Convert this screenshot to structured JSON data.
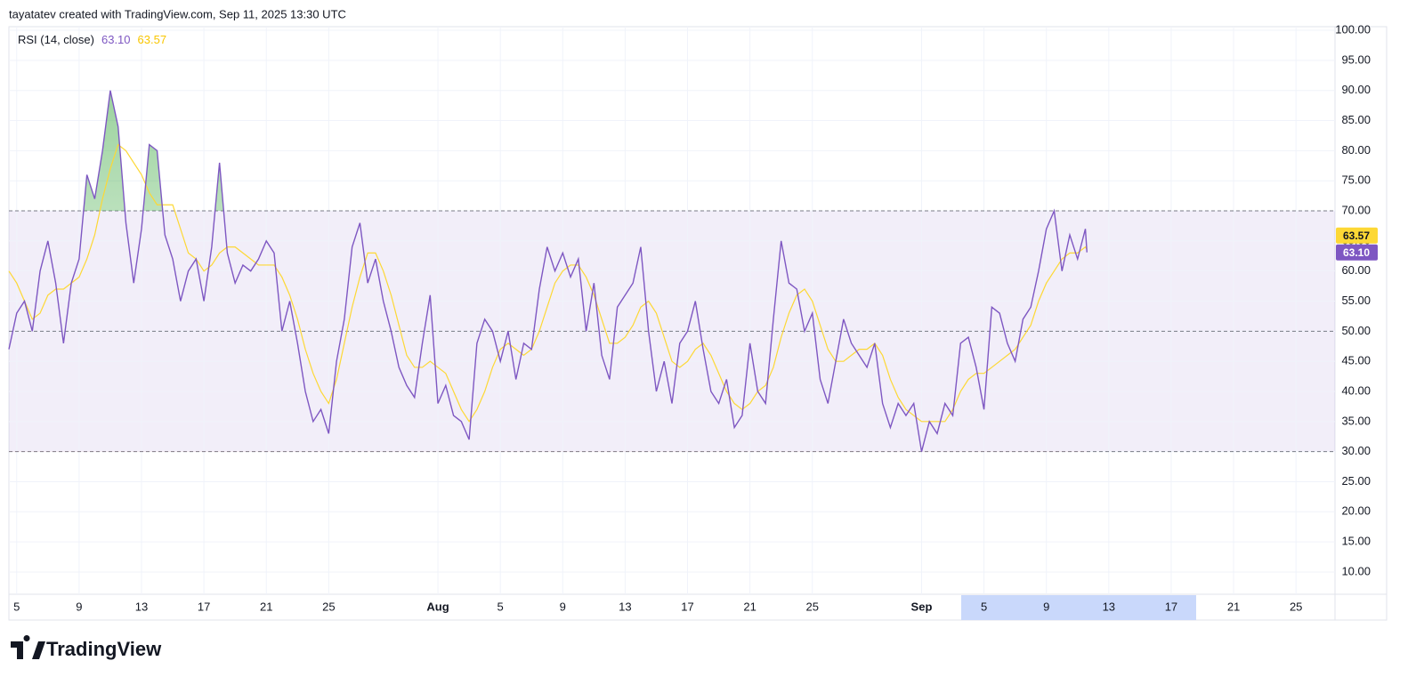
{
  "header": "tayatatev created with TradingView.com, Sep 11, 2025 13:30 UTC",
  "footer_brand": "TradingView",
  "chart_data": {
    "type": "line",
    "title": "RSI (14, close)",
    "x": [
      4.5,
      5,
      5.5,
      6,
      6.5,
      7,
      7.5,
      8,
      8.5,
      9,
      9.5,
      10,
      10.5,
      11,
      11.5,
      12,
      12.5,
      13,
      13.5,
      14,
      14.5,
      15,
      15.5,
      16,
      16.5,
      17,
      17.5,
      18,
      18.5,
      19,
      19.5,
      20,
      20.5,
      21,
      21.5,
      22,
      22.5,
      23,
      23.5,
      24,
      24.5,
      25,
      25.5,
      26,
      26.5,
      27,
      27.5,
      28,
      28.5,
      29,
      29.5,
      30,
      30.5,
      31,
      31.5,
      32,
      32.5,
      33,
      33.5,
      34,
      34.5,
      35,
      35.5,
      36,
      36.5,
      37,
      37.5,
      38,
      38.5,
      39,
      39.5,
      40,
      40.5,
      41,
      41.5,
      42,
      42.5,
      43,
      43.5,
      44,
      44.5,
      45,
      45.5,
      46,
      46.5,
      47,
      47.5,
      48,
      48.5,
      49,
      49.5,
      50,
      50.5,
      51,
      51.5,
      52,
      52.5,
      53,
      53.5,
      54,
      54.5,
      55,
      55.5,
      56,
      56.5,
      57,
      57.5,
      58,
      58.5,
      59,
      59.5,
      60,
      60.5,
      61,
      61.5,
      62,
      62.5,
      63,
      63.5,
      64,
      64.5,
      65,
      65.5,
      66,
      66.5,
      67,
      67.5,
      68,
      68.5,
      69,
      69.5,
      70,
      70.5,
      71,
      71.5,
      72,
      72.5,
      73,
      73.5,
      73.6
    ],
    "series": [
      {
        "color": "#7e57c2",
        "last_value_label": "63.10",
        "values": [
          47,
          53,
          55,
          50,
          60,
          65,
          58,
          48,
          58,
          62,
          76,
          72,
          80,
          90,
          84,
          68,
          58,
          67,
          81,
          80,
          66,
          62,
          55,
          60,
          62,
          55,
          64,
          78,
          63,
          58,
          61,
          60,
          62,
          65,
          63,
          50,
          55,
          48,
          40,
          35,
          37,
          33,
          45,
          52,
          64,
          68,
          58,
          62,
          55,
          50,
          44,
          41,
          39,
          48,
          56,
          38,
          41,
          36,
          35,
          32,
          48,
          52,
          50,
          45,
          50,
          42,
          48,
          47,
          57,
          64,
          60,
          63,
          59,
          62,
          50,
          58,
          46,
          42,
          54,
          56,
          58,
          64,
          50,
          40,
          45,
          38,
          48,
          50,
          55,
          47,
          40,
          38,
          42,
          34,
          36,
          48,
          40,
          38,
          52,
          65,
          58,
          57,
          50,
          53,
          42,
          38,
          45,
          52,
          48,
          46,
          44,
          48,
          38,
          34,
          38,
          36,
          38,
          30,
          35,
          33,
          38,
          36,
          48,
          49,
          44,
          37,
          54,
          53,
          48,
          45,
          52,
          54,
          60,
          67,
          70,
          60,
          66,
          62,
          67,
          63.1
        ]
      },
      {
        "color": "#fdd835",
        "last_value_label": "63.57",
        "values": [
          60,
          58,
          55,
          52,
          53,
          56,
          57,
          57,
          58,
          59,
          62,
          66,
          72,
          77,
          81,
          80,
          78,
          76,
          73,
          71,
          71,
          71,
          67,
          63,
          62,
          60,
          61,
          63,
          64,
          64,
          63,
          62,
          61,
          61,
          61,
          59,
          56,
          52,
          47,
          43,
          40,
          38,
          42,
          48,
          54,
          59,
          63,
          63,
          60,
          56,
          51,
          46,
          44,
          44,
          45,
          44,
          43,
          40,
          37,
          35,
          37,
          40,
          44,
          47,
          48,
          47,
          46,
          47,
          50,
          54,
          58,
          60,
          61,
          61,
          59,
          56,
          52,
          48,
          48,
          49,
          51,
          54,
          55,
          53,
          49,
          45,
          44,
          45,
          47,
          48,
          46,
          43,
          40,
          38,
          37,
          38,
          40,
          41,
          44,
          49,
          53,
          56,
          57,
          55,
          51,
          47,
          45,
          45,
          46,
          47,
          47,
          48,
          46,
          42,
          39,
          37,
          36,
          35,
          35,
          35,
          35,
          37,
          40,
          42,
          43,
          43,
          44,
          45,
          46,
          47,
          49,
          51,
          55,
          58,
          60,
          62,
          63,
          63,
          64,
          63.57
        ]
      }
    ],
    "xlim": [
      4.5,
      89.5
    ],
    "xticks": [
      {
        "value": 5,
        "label": "5"
      },
      {
        "value": 9,
        "label": "9"
      },
      {
        "value": 13,
        "label": "13"
      },
      {
        "value": 17,
        "label": "17"
      },
      {
        "value": 21,
        "label": "21"
      },
      {
        "value": 25,
        "label": "25"
      },
      {
        "value": 32,
        "label": "Aug"
      },
      {
        "value": 36,
        "label": "5"
      },
      {
        "value": 40,
        "label": "9"
      },
      {
        "value": 44,
        "label": "13"
      },
      {
        "value": 48,
        "label": "17"
      },
      {
        "value": 52,
        "label": "21"
      },
      {
        "value": 56,
        "label": "25"
      },
      {
        "value": 63,
        "label": "Sep"
      },
      {
        "value": 67,
        "label": "5"
      },
      {
        "value": 71,
        "label": "9"
      },
      {
        "value": 75,
        "label": "13"
      },
      {
        "value": 79,
        "label": "17"
      },
      {
        "value": 83,
        "label": "21"
      },
      {
        "value": 87,
        "label": "25"
      }
    ],
    "ylim": [
      6.3,
      100.6
    ],
    "yticks": [
      {
        "value": 10,
        "label": "10.00"
      },
      {
        "value": 15,
        "label": "15.00"
      },
      {
        "value": 20,
        "label": "20.00"
      },
      {
        "value": 25,
        "label": "25.00"
      },
      {
        "value": 30,
        "label": "30.00"
      },
      {
        "value": 35,
        "label": "35.00"
      },
      {
        "value": 40,
        "label": "40.00"
      },
      {
        "value": 45,
        "label": "45.00"
      },
      {
        "value": 50,
        "label": "50.00"
      },
      {
        "value": 55,
        "label": "55.00"
      },
      {
        "value": 60,
        "label": "60.00"
      },
      {
        "value": 65,
        "label": "65.00"
      },
      {
        "value": 70,
        "label": "70.00"
      },
      {
        "value": 75,
        "label": "75.00"
      },
      {
        "value": 80,
        "label": "80.00"
      },
      {
        "value": 85,
        "label": "85.00"
      },
      {
        "value": 90,
        "label": "90.00"
      },
      {
        "value": 95,
        "label": "95.00"
      },
      {
        "value": 100,
        "label": "100.00"
      }
    ],
    "grid": true,
    "band_upper": 70,
    "band_middle": 50,
    "band_lower": 30
  }
}
